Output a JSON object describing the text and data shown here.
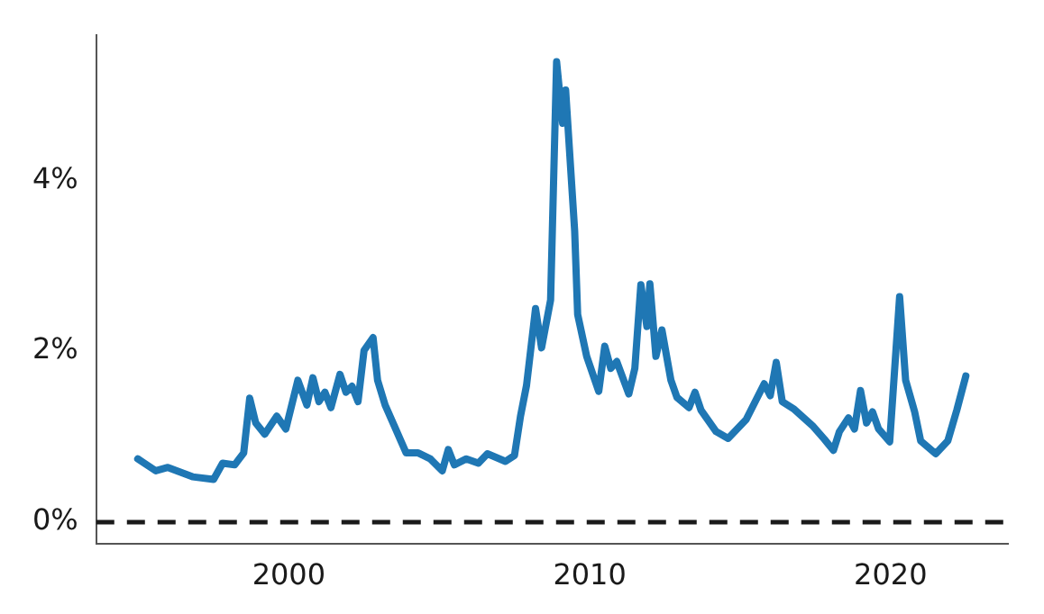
{
  "chart_data": {
    "type": "line",
    "xlim": [
      1993.6,
      2023.9
    ],
    "ylim": [
      -0.25,
      5.7
    ],
    "xticks": [
      2000,
      2010,
      2020
    ],
    "yticks": [
      {
        "value": 0,
        "label": "0%"
      },
      {
        "value": 2,
        "label": "2%"
      },
      {
        "value": 4,
        "label": "4%"
      }
    ],
    "grid": false,
    "legend": false,
    "marker": "none",
    "line_style": "solid",
    "ref_lines": [
      {
        "axis": "y",
        "value": 0,
        "color": "#1a1a1a",
        "line_style": "dashed"
      }
    ],
    "series": [
      {
        "color": "#1f77b4",
        "x": [
          1994.98,
          1995.58,
          1995.98,
          1996.8,
          1997.5,
          1997.8,
          1998.2,
          1998.5,
          1998.7,
          1998.9,
          1999.2,
          1999.6,
          1999.9,
          2000.3,
          2000.6,
          2000.8,
          2001.0,
          2001.2,
          2001.4,
          2001.7,
          2001.9,
          2002.1,
          2002.3,
          2002.5,
          2002.8,
          2002.95,
          2003.2,
          2003.5,
          2003.9,
          2004.3,
          2004.7,
          2005.1,
          2005.3,
          2005.5,
          2005.9,
          2006.3,
          2006.6,
          2007.2,
          2007.5,
          2007.7,
          2007.9,
          2008.2,
          2008.4,
          2008.7,
          2008.9,
          2009.1,
          2009.2,
          2009.5,
          2009.6,
          2009.9,
          2010.3,
          2010.5,
          2010.7,
          2010.9,
          2011.3,
          2011.5,
          2011.7,
          2011.9,
          2012.0,
          2012.2,
          2012.4,
          2012.7,
          2012.9,
          2013.3,
          2013.5,
          2013.7,
          2014.2,
          2014.6,
          2015.2,
          2015.8,
          2016.0,
          2016.2,
          2016.4,
          2016.8,
          2017.4,
          2017.8,
          2018.1,
          2018.3,
          2018.6,
          2018.8,
          2019.0,
          2019.2,
          2019.4,
          2019.6,
          2019.97,
          2020.3,
          2020.5,
          2020.8,
          2021.0,
          2021.5,
          2021.9,
          2022.2,
          2022.5
        ],
        "values": [
          0.74,
          0.6,
          0.64,
          0.53,
          0.5,
          0.69,
          0.67,
          0.81,
          1.45,
          1.16,
          1.03,
          1.24,
          1.09,
          1.66,
          1.37,
          1.69,
          1.41,
          1.52,
          1.34,
          1.73,
          1.52,
          1.59,
          1.41,
          2.01,
          2.16,
          1.66,
          1.37,
          1.13,
          0.81,
          0.81,
          0.74,
          0.6,
          0.85,
          0.67,
          0.74,
          0.69,
          0.8,
          0.71,
          0.78,
          1.24,
          1.6,
          2.5,
          2.04,
          2.6,
          5.39,
          4.67,
          5.06,
          3.41,
          2.43,
          1.94,
          1.53,
          2.06,
          1.8,
          1.88,
          1.5,
          1.8,
          2.78,
          2.29,
          2.79,
          1.94,
          2.25,
          1.66,
          1.46,
          1.34,
          1.52,
          1.31,
          1.06,
          0.98,
          1.2,
          1.62,
          1.48,
          1.87,
          1.41,
          1.32,
          1.13,
          0.97,
          0.84,
          1.06,
          1.22,
          1.09,
          1.54,
          1.16,
          1.29,
          1.09,
          0.94,
          2.64,
          1.66,
          1.29,
          0.95,
          0.8,
          0.95,
          1.31,
          1.71
        ]
      }
    ]
  }
}
